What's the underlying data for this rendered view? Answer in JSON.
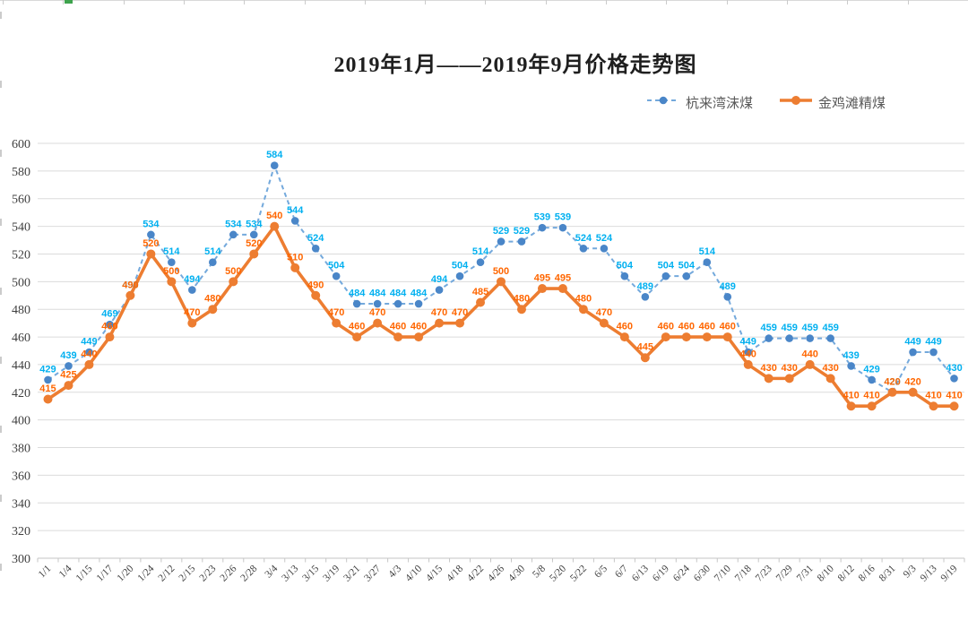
{
  "title": {
    "text": "2019年1月——2019年9月价格走势图"
  },
  "legend": {
    "position": "top-right",
    "items": [
      {
        "label": "杭来湾沫煤",
        "line_color": "#74A9DC",
        "marker_color": "#4A86C8",
        "style": "dashed-dot"
      },
      {
        "label": "金鸡滩精煤",
        "line_color": "#ED7D31",
        "marker_color": "#ED7D31",
        "style": "solid-dot"
      }
    ]
  },
  "chart_data": {
    "type": "line",
    "title": "2019年1月——2019年9月价格走势图",
    "categories": [
      "1/1",
      "1/4",
      "1/15",
      "1/17",
      "1/20",
      "1/24",
      "2/12",
      "2/15",
      "2/23",
      "2/26",
      "2/28",
      "3/4",
      "3/13",
      "3/15",
      "3/19",
      "3/21",
      "3/27",
      "4/3",
      "4/10",
      "4/15",
      "4/18",
      "4/22",
      "4/26",
      "4/30",
      "5/8",
      "5/20",
      "5/22",
      "6/5",
      "6/7",
      "6/13",
      "6/19",
      "6/24",
      "6/30",
      "7/10",
      "7/18",
      "7/23",
      "7/29",
      "7/31",
      "8/10",
      "8/12",
      "8/16",
      "8/31",
      "9/3",
      "9/13",
      "9/19"
    ],
    "series": [
      {
        "name": "杭来湾沫煤",
        "values": [
          429,
          439,
          449,
          469,
          490,
          534,
          514,
          494,
          514,
          534,
          534,
          584,
          544,
          524,
          504,
          484,
          484,
          484,
          484,
          494,
          504,
          514,
          529,
          529,
          539,
          539,
          524,
          524,
          504,
          489,
          504,
          504,
          514,
          489,
          449,
          459,
          459,
          459,
          459,
          439,
          429,
          420,
          449,
          449,
          430
        ],
        "line_color": "#74A9DC",
        "marker_color": "#4A86C8",
        "label_color": "#00B0F0",
        "line_style": "dashed"
      },
      {
        "name": "金鸡滩精煤",
        "values": [
          415,
          425,
          440,
          460,
          490,
          520,
          500,
          470,
          480,
          500,
          520,
          540,
          510,
          490,
          470,
          460,
          470,
          460,
          460,
          470,
          470,
          485,
          500,
          480,
          495,
          495,
          480,
          470,
          460,
          445,
          460,
          460,
          460,
          460,
          440,
          430,
          430,
          440,
          430,
          410,
          410,
          420,
          420,
          410,
          410
        ],
        "line_color": "#ED7D31",
        "marker_color": "#ED7D31",
        "label_color": "#FF6600",
        "line_style": "solid"
      }
    ],
    "xlabel": "",
    "ylabel": "",
    "y_axis": {
      "min": 300,
      "max": 600,
      "step": 20,
      "ticks": [
        600,
        580,
        560,
        540,
        520,
        500,
        480,
        460,
        440,
        420,
        400,
        380,
        360,
        340,
        320,
        300
      ]
    },
    "grid": true,
    "grid_color": "#DBDBDB",
    "legend_position": "top-right",
    "background": "#FFFFFF"
  }
}
